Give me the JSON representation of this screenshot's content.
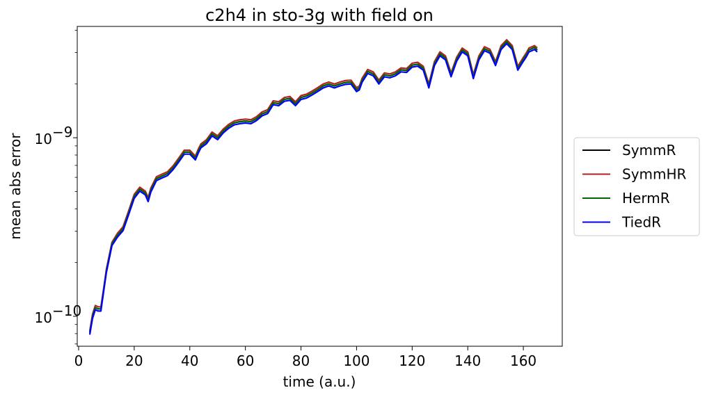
{
  "chart_data": {
    "type": "line",
    "title": "c2h4 in sto-3g with field on",
    "xlabel": "time (a.u.)",
    "ylabel": "mean abs error",
    "xlim": [
      -0.5,
      174
    ],
    "ylim": [
      6.8e-11,
      4.2e-09
    ],
    "yscale": "log",
    "xticks": [
      0,
      20,
      40,
      60,
      80,
      100,
      120,
      140,
      160
    ],
    "yticks": [
      {
        "value": 1e-10,
        "label": "10",
        "exp": "−10"
      },
      {
        "value": 1e-09,
        "label": "10",
        "exp": "−9"
      }
    ],
    "grid": false,
    "legend_position": "outside-right",
    "x": [
      4,
      5,
      6,
      7,
      8,
      9,
      10,
      12,
      14,
      16,
      18,
      20,
      22,
      24,
      25,
      26,
      28,
      30,
      32,
      34,
      36,
      38,
      40,
      42,
      43,
      44,
      46,
      48,
      50,
      52,
      54,
      56,
      58,
      60,
      62,
      64,
      66,
      68,
      70,
      72,
      74,
      76,
      78,
      80,
      82,
      84,
      86,
      88,
      90,
      92,
      94,
      96,
      98,
      100,
      101,
      102,
      104,
      106,
      108,
      110,
      112,
      114,
      116,
      118,
      120,
      122,
      124,
      126,
      128,
      130,
      132,
      134,
      136,
      138,
      140,
      141,
      142,
      144,
      146,
      148,
      150,
      152,
      154,
      156,
      158,
      160,
      161,
      162,
      164,
      165
    ],
    "series": [
      {
        "name": "SymmR",
        "color": "#000000",
        "y": [
          8.1e-11,
          1e-10,
          1.12e-10,
          1.1e-10,
          1.1e-10,
          1.4e-10,
          1.8e-10,
          2.55e-10,
          2.85e-10,
          3.1e-10,
          3.8e-10,
          4.7e-10,
          5.15e-10,
          4.9e-10,
          4.5e-10,
          5.1e-10,
          5.9e-10,
          6.1e-10,
          6.3e-10,
          6.8e-10,
          7.5e-10,
          8.3e-10,
          8.3e-10,
          7.7e-10,
          8.4e-10,
          9e-10,
          9.5e-10,
          1.05e-09,
          1e-09,
          1.09e-09,
          1.16e-09,
          1.21e-09,
          1.23e-09,
          1.24e-09,
          1.23e-09,
          1.28e-09,
          1.36e-09,
          1.4e-09,
          1.57e-09,
          1.55e-09,
          1.64e-09,
          1.66e-09,
          1.55e-09,
          1.68e-09,
          1.71e-09,
          1.78e-09,
          1.86e-09,
          1.95e-09,
          2e-09,
          1.95e-09,
          2e-09,
          2.04e-09,
          2.05e-09,
          1.86e-09,
          1.9e-09,
          2.1e-09,
          2.35e-09,
          2.28e-09,
          2.05e-09,
          2.25e-09,
          2.22e-09,
          2.28e-09,
          2.4e-09,
          2.38e-09,
          2.55e-09,
          2.58e-09,
          2.45e-09,
          1.95e-09,
          2.6e-09,
          2.95e-09,
          2.8e-09,
          2.25e-09,
          2.75e-09,
          3.1e-09,
          2.95e-09,
          2.55e-09,
          2.2e-09,
          2.8e-09,
          3.15e-09,
          3.05e-09,
          2.6e-09,
          3.2e-09,
          3.45e-09,
          3.2e-09,
          2.45e-09,
          2.75e-09,
          2.9e-09,
          3.1e-09,
          3.2e-09,
          3.1e-09
        ]
      },
      {
        "name": "SymmHR",
        "color": "#b22222",
        "y": [
          8.3e-11,
          1.03e-10,
          1.15e-10,
          1.13e-10,
          1.13e-10,
          1.43e-10,
          1.84e-10,
          2.6e-10,
          2.92e-10,
          3.18e-10,
          3.9e-10,
          4.82e-10,
          5.28e-10,
          5.02e-10,
          4.62e-10,
          5.23e-10,
          6.05e-10,
          6.25e-10,
          6.45e-10,
          6.97e-10,
          7.69e-10,
          8.51e-10,
          8.51e-10,
          7.89e-10,
          8.61e-10,
          9.23e-10,
          9.74e-10,
          1.076e-09,
          1.025e-09,
          1.117e-09,
          1.189e-09,
          1.24e-09,
          1.261e-09,
          1.271e-09,
          1.261e-09,
          1.312e-09,
          1.394e-09,
          1.435e-09,
          1.609e-09,
          1.589e-09,
          1.681e-09,
          1.702e-09,
          1.589e-09,
          1.722e-09,
          1.753e-09,
          1.825e-09,
          1.907e-09,
          1.999e-09,
          2.05e-09,
          1.999e-09,
          2.05e-09,
          2.091e-09,
          2.101e-09,
          1.907e-09,
          1.948e-09,
          2.153e-09,
          2.409e-09,
          2.337e-09,
          2.101e-09,
          2.306e-09,
          2.276e-09,
          2.337e-09,
          2.46e-09,
          2.44e-09,
          2.614e-09,
          2.645e-09,
          2.511e-09,
          1.999e-09,
          2.665e-09,
          3.024e-09,
          2.87e-09,
          2.306e-09,
          2.819e-09,
          3.178e-09,
          3.024e-09,
          2.614e-09,
          2.255e-09,
          2.87e-09,
          3.229e-09,
          3.126e-09,
          2.665e-09,
          3.28e-09,
          3.536e-09,
          3.28e-09,
          2.511e-09,
          2.819e-09,
          2.973e-09,
          3.178e-09,
          3.28e-09,
          3.178e-09
        ]
      },
      {
        "name": "HermR",
        "color": "#006400",
        "y": [
          8.1e-11,
          1e-10,
          1.12e-10,
          1.1e-10,
          1.1e-10,
          1.4e-10,
          1.8e-10,
          2.55e-10,
          2.85e-10,
          3.1e-10,
          3.8e-10,
          4.7e-10,
          5.15e-10,
          4.9e-10,
          4.5e-10,
          5.1e-10,
          5.9e-10,
          6.1e-10,
          6.3e-10,
          6.8e-10,
          7.5e-10,
          8.3e-10,
          8.3e-10,
          7.7e-10,
          8.4e-10,
          9e-10,
          9.5e-10,
          1.05e-09,
          1e-09,
          1.09e-09,
          1.16e-09,
          1.21e-09,
          1.23e-09,
          1.24e-09,
          1.23e-09,
          1.28e-09,
          1.36e-09,
          1.4e-09,
          1.57e-09,
          1.55e-09,
          1.64e-09,
          1.66e-09,
          1.55e-09,
          1.68e-09,
          1.71e-09,
          1.78e-09,
          1.86e-09,
          1.95e-09,
          2e-09,
          1.95e-09,
          2e-09,
          2.04e-09,
          2.05e-09,
          1.86e-09,
          1.9e-09,
          2.1e-09,
          2.35e-09,
          2.28e-09,
          2.05e-09,
          2.25e-09,
          2.22e-09,
          2.28e-09,
          2.4e-09,
          2.38e-09,
          2.55e-09,
          2.58e-09,
          2.45e-09,
          1.95e-09,
          2.6e-09,
          2.95e-09,
          2.8e-09,
          2.25e-09,
          2.75e-09,
          3.1e-09,
          2.95e-09,
          2.55e-09,
          2.2e-09,
          2.8e-09,
          3.15e-09,
          3.05e-09,
          2.6e-09,
          3.2e-09,
          3.45e-09,
          3.2e-09,
          2.45e-09,
          2.75e-09,
          2.9e-09,
          3.1e-09,
          3.2e-09,
          3.1e-09
        ]
      },
      {
        "name": "TiedR",
        "color": "#0000ff",
        "y": [
          7.9e-11,
          9.75e-11,
          1.09e-10,
          1.07e-10,
          1.07e-10,
          1.37e-10,
          1.76e-10,
          2.49e-10,
          2.78e-10,
          3.02e-10,
          3.71e-10,
          4.58e-10,
          5.02e-10,
          4.78e-10,
          4.39e-10,
          4.97e-10,
          5.75e-10,
          5.95e-10,
          6.14e-10,
          6.63e-10,
          7.31e-10,
          8.09e-10,
          8.09e-10,
          7.51e-10,
          8.19e-10,
          8.78e-10,
          9.26e-10,
          1.024e-09,
          9.75e-10,
          1.063e-09,
          1.131e-09,
          1.18e-09,
          1.199e-09,
          1.209e-09,
          1.199e-09,
          1.248e-09,
          1.326e-09,
          1.365e-09,
          1.531e-09,
          1.511e-09,
          1.599e-09,
          1.619e-09,
          1.511e-09,
          1.638e-09,
          1.667e-09,
          1.736e-09,
          1.814e-09,
          1.901e-09,
          1.95e-09,
          1.901e-09,
          1.95e-09,
          1.989e-09,
          1.999e-09,
          1.814e-09,
          1.853e-09,
          2.048e-09,
          2.291e-09,
          2.223e-09,
          1.999e-09,
          2.194e-09,
          2.165e-09,
          2.223e-09,
          2.34e-09,
          2.321e-09,
          2.486e-09,
          2.516e-09,
          2.389e-09,
          1.901e-09,
          2.535e-09,
          2.876e-09,
          2.73e-09,
          2.194e-09,
          2.681e-09,
          3.023e-09,
          2.876e-09,
          2.486e-09,
          2.145e-09,
          2.73e-09,
          3.071e-09,
          2.974e-09,
          2.535e-09,
          3.12e-09,
          3.364e-09,
          3.12e-09,
          2.389e-09,
          2.681e-09,
          2.828e-09,
          3.023e-09,
          3.12e-09,
          3.023e-09
        ]
      }
    ]
  }
}
